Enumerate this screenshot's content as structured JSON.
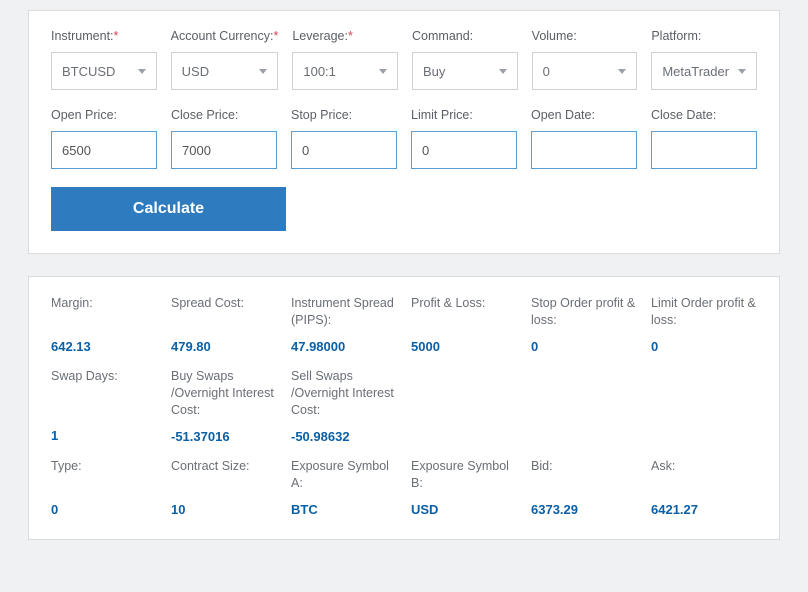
{
  "form": {
    "row1": [
      {
        "label": "Instrument:",
        "required": true,
        "type": "select",
        "value": "BTCUSD",
        "name": "instrument-select"
      },
      {
        "label": "Account Currency:",
        "required": true,
        "type": "select",
        "value": "USD",
        "name": "account-currency-select"
      },
      {
        "label": "Leverage:",
        "required": true,
        "type": "select",
        "value": "100:1",
        "name": "leverage-select"
      },
      {
        "label": "Command:",
        "required": false,
        "type": "select",
        "value": "Buy",
        "name": "command-select"
      },
      {
        "label": "Volume:",
        "required": false,
        "type": "select",
        "value": "0",
        "name": "volume-select"
      },
      {
        "label": "Platform:",
        "required": false,
        "type": "select",
        "value": "MetaTrader",
        "name": "platform-select"
      }
    ],
    "row2": [
      {
        "label": "Open Price:",
        "type": "input",
        "value": "6500",
        "name": "open-price-input"
      },
      {
        "label": "Close Price:",
        "type": "input",
        "value": "7000",
        "name": "close-price-input"
      },
      {
        "label": "Stop Price:",
        "type": "input",
        "value": "0",
        "name": "stop-price-input"
      },
      {
        "label": "Limit Price:",
        "type": "input",
        "value": "0",
        "name": "limit-price-input"
      },
      {
        "label": "Open Date:",
        "type": "input",
        "value": "",
        "name": "open-date-input"
      },
      {
        "label": "Close Date:",
        "type": "input",
        "value": "",
        "name": "close-date-input"
      }
    ],
    "button": "Calculate"
  },
  "results": {
    "group1": [
      {
        "label": "Margin:",
        "value": "642.13"
      },
      {
        "label": "Spread Cost:",
        "value": "479.80"
      },
      {
        "label": "Instrument Spread (PIPS):",
        "value": "47.98000"
      },
      {
        "label": "Profit & Loss:",
        "value": "5000"
      },
      {
        "label": "Stop Order profit & loss:",
        "value": "0"
      },
      {
        "label": "Limit Order profit & loss:",
        "value": "0"
      }
    ],
    "group2": [
      {
        "label": "Swap Days:",
        "value": "1"
      },
      {
        "label": "Buy Swaps /Overnight Interest Cost:",
        "value": "-51.37016"
      },
      {
        "label": "Sell Swaps /Overnight Interest Cost:",
        "value": "-50.98632"
      }
    ],
    "group3": [
      {
        "label": "Type:",
        "value": "0"
      },
      {
        "label": "Contract Size:",
        "value": "10"
      },
      {
        "label": "Exposure Symbol A:",
        "value": "BTC"
      },
      {
        "label": "Exposure Symbol B:",
        "value": "USD"
      },
      {
        "label": "Bid:",
        "value": "6373.29"
      },
      {
        "label": "Ask:",
        "value": "6421.27"
      }
    ]
  }
}
